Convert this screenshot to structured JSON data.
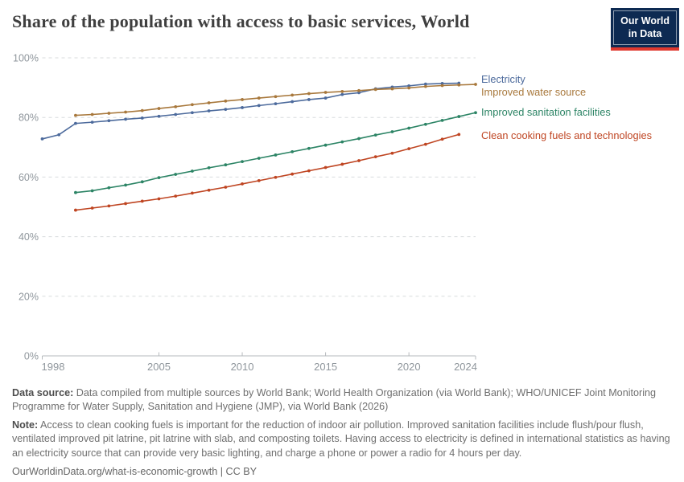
{
  "header": {
    "logo": {
      "line1": "Our World",
      "line2": "in Data",
      "bg_color": "#0D2A52",
      "accent_color": "#E0392F"
    }
  },
  "chart_data": {
    "type": "line",
    "title": "Share of the population with access to basic services, World",
    "xlabel": "",
    "ylabel": "",
    "xlim": [
      1998,
      2024
    ],
    "ylim": [
      0,
      100
    ],
    "grid": true,
    "legend_position": "right",
    "x_ticks": [
      1998,
      2005,
      2010,
      2015,
      2020,
      2024
    ],
    "y_ticks": [
      0,
      20,
      40,
      60,
      80,
      100
    ],
    "y_tick_labels": [
      "0%",
      "20%",
      "40%",
      "60%",
      "80%",
      "100%"
    ],
    "series": [
      {
        "name": "Electricity",
        "color": "#4C6A9C",
        "start_year": 1998,
        "end_year": 2023,
        "values": [
          72.8,
          74.2,
          78.0,
          78.4,
          78.9,
          79.4,
          79.8,
          80.4,
          81.0,
          81.6,
          82.2,
          82.7,
          83.3,
          84.0,
          84.6,
          85.3,
          86.0,
          86.5,
          87.7,
          88.3,
          89.6,
          90.2,
          90.6,
          91.2,
          91.4,
          91.5
        ]
      },
      {
        "name": "Improved water source",
        "color": "#A8783C",
        "start_year": 2000,
        "end_year": 2024,
        "values": [
          80.7,
          81.0,
          81.4,
          81.8,
          82.3,
          83.0,
          83.6,
          84.3,
          84.9,
          85.5,
          86.0,
          86.5,
          87.0,
          87.5,
          88.0,
          88.4,
          88.7,
          89.0,
          89.4,
          89.6,
          89.9,
          90.4,
          90.7,
          90.9,
          91.1
        ]
      },
      {
        "name": "Improved sanitation facilities",
        "color": "#2C8465",
        "start_year": 2000,
        "end_year": 2024,
        "values": [
          54.8,
          55.4,
          56.4,
          57.3,
          58.4,
          59.8,
          60.9,
          62.0,
          63.1,
          64.1,
          65.2,
          66.3,
          67.4,
          68.5,
          69.6,
          70.7,
          71.8,
          72.9,
          74.1,
          75.2,
          76.4,
          77.7,
          79.0,
          80.3,
          81.6
        ]
      },
      {
        "name": "Clean cooking fuels and technologies",
        "color": "#BF4522",
        "start_year": 2000,
        "end_year": 2023,
        "values": [
          48.9,
          49.6,
          50.3,
          51.1,
          51.9,
          52.7,
          53.6,
          54.6,
          55.6,
          56.6,
          57.7,
          58.8,
          59.9,
          61.0,
          62.1,
          63.2,
          64.3,
          65.5,
          66.8,
          68.0,
          69.5,
          71.0,
          72.7,
          74.3
        ]
      }
    ]
  },
  "footer": {
    "data_source_label": "Data source:",
    "data_source_text": " Data compiled from multiple sources by World Bank; World Health Organization (via World Bank); WHO/UNICEF Joint Monitoring Programme for Water Supply, Sanitation and Hygiene (JMP), via World Bank (2026)",
    "note_label": "Note:",
    "note_text": " Access to clean cooking fuels is important for the reduction of indoor air pollution. Improved sanitation facilities include flush/pour flush, ventilated improved pit latrine, pit latrine with slab, and composting toilets. Having access to electricity is defined in international statistics as having an electricity source that can provide very basic lighting, and charge a phone or power a radio for 4 hours per day.",
    "citation": "OurWorldinData.org/what-is-economic-growth | CC BY"
  }
}
